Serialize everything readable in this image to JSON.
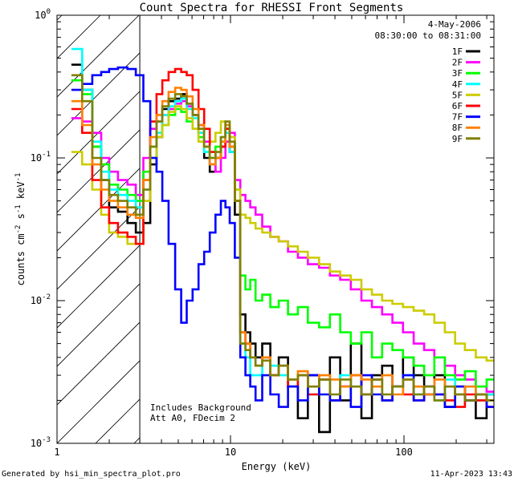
{
  "chart_data": {
    "type": "line",
    "title": "Count Spectra for RHESSI Front Segments",
    "xlabel": "Energy (keV)",
    "ylabel_main": "counts cm",
    "ylabel_sup1": "-2",
    "ylabel_mid": " s",
    "ylabel_sup2": "-1",
    "ylabel_end": " keV",
    "ylabel_sup3": "-1",
    "x_scale": "log",
    "y_scale": "log",
    "xlim": [
      1.0,
      330.0
    ],
    "ylim": [
      0.001,
      1.0
    ],
    "x_ticks": [
      {
        "value": 1,
        "label": "1"
      },
      {
        "value": 10,
        "label": "10"
      },
      {
        "value": 100,
        "label": "100"
      }
    ],
    "y_ticks": [
      {
        "value": 1.0,
        "base": "10",
        "exp": "0"
      },
      {
        "value": 0.1,
        "base": "10",
        "exp": "-1"
      },
      {
        "value": 0.01,
        "base": "10",
        "exp": "-2"
      },
      {
        "value": 0.001,
        "base": "10",
        "exp": "-3"
      }
    ],
    "hatched_region_max_kev": 3.0,
    "date": "4-May-2006",
    "time_range": "08:30:00 to 08:31:00",
    "annotation_lines": [
      "Includes Background",
      "Att A0, FDecim 2"
    ],
    "footer_left": "Generated by hsi_min_spectra_plot.pro",
    "footer_right": "11-Apr-2023 13:43",
    "series": [
      {
        "name": "1F",
        "color": "#000000",
        "x": [
          1.3,
          1.5,
          1.7,
          1.9,
          2.1,
          2.4,
          2.7,
          3.0,
          3.3,
          3.6,
          3.9,
          4.2,
          4.6,
          5.0,
          5.4,
          5.8,
          6.3,
          6.8,
          7.3,
          7.9,
          8.5,
          9.1,
          9.6,
          10.2,
          11.0,
          11.8,
          12.6,
          13.4,
          14.5,
          16,
          18,
          20,
          23,
          26,
          30,
          35,
          40,
          46,
          53,
          61,
          70,
          80,
          92,
          106,
          122,
          140,
          160,
          185,
          210,
          240,
          280,
          320
        ],
        "y": [
          0.45,
          0.3,
          0.12,
          0.07,
          0.045,
          0.042,
          0.035,
          0.03,
          0.035,
          0.09,
          0.14,
          0.22,
          0.25,
          0.26,
          0.28,
          0.24,
          0.2,
          0.15,
          0.1,
          0.08,
          0.1,
          0.12,
          0.16,
          0.11,
          0.04,
          0.008,
          0.006,
          0.005,
          0.004,
          0.005,
          0.003,
          0.004,
          0.0025,
          0.0015,
          0.003,
          0.0012,
          0.004,
          0.002,
          0.005,
          0.0015,
          0.003,
          0.0035,
          0.0025,
          0.004,
          0.003,
          0.0022,
          0.003,
          0.0018,
          0.0025,
          0.002,
          0.0015,
          0.0022
        ]
      },
      {
        "name": "2F",
        "color": "#ff00ff",
        "x": [
          1.3,
          1.5,
          1.7,
          1.9,
          2.1,
          2.4,
          2.7,
          3.0,
          3.3,
          3.6,
          3.9,
          4.2,
          4.6,
          5.0,
          5.4,
          5.8,
          6.3,
          6.8,
          7.3,
          7.9,
          8.5,
          9.1,
          9.6,
          10.2,
          11.0,
          11.8,
          12.6,
          13.4,
          14.5,
          16,
          18,
          20,
          23,
          26,
          30,
          35,
          40,
          46,
          53,
          61,
          70,
          80,
          92,
          106,
          122,
          140,
          160,
          185,
          210,
          240,
          280,
          320
        ],
        "y": [
          0.19,
          0.18,
          0.15,
          0.1,
          0.08,
          0.07,
          0.065,
          0.055,
          0.1,
          0.16,
          0.18,
          0.2,
          0.22,
          0.24,
          0.25,
          0.23,
          0.2,
          0.17,
          0.13,
          0.09,
          0.08,
          0.1,
          0.13,
          0.15,
          0.07,
          0.055,
          0.05,
          0.045,
          0.04,
          0.033,
          0.028,
          0.026,
          0.022,
          0.02,
          0.018,
          0.017,
          0.015,
          0.014,
          0.012,
          0.01,
          0.009,
          0.008,
          0.007,
          0.006,
          0.005,
          0.0045,
          0.004,
          0.0035,
          0.003,
          0.0028,
          0.0025,
          0.0023
        ]
      },
      {
        "name": "3F",
        "color": "#00ff00",
        "x": [
          1.3,
          1.5,
          1.7,
          1.9,
          2.1,
          2.4,
          2.7,
          3.0,
          3.3,
          3.6,
          3.9,
          4.2,
          4.6,
          5.0,
          5.4,
          5.8,
          6.3,
          6.8,
          7.3,
          7.9,
          8.5,
          9.1,
          9.6,
          10.2,
          11.0,
          11.8,
          12.6,
          13.4,
          14.5,
          16,
          18,
          20,
          23,
          26,
          30,
          35,
          40,
          46,
          53,
          61,
          70,
          80,
          92,
          106,
          122,
          140,
          160,
          185,
          210,
          240,
          280,
          320
        ],
        "y": [
          0.35,
          0.28,
          0.12,
          0.09,
          0.065,
          0.06,
          0.055,
          0.05,
          0.08,
          0.12,
          0.15,
          0.17,
          0.2,
          0.22,
          0.21,
          0.18,
          0.16,
          0.14,
          0.11,
          0.1,
          0.12,
          0.14,
          0.16,
          0.12,
          0.06,
          0.015,
          0.012,
          0.014,
          0.01,
          0.011,
          0.009,
          0.01,
          0.008,
          0.009,
          0.007,
          0.0065,
          0.008,
          0.006,
          0.005,
          0.006,
          0.004,
          0.005,
          0.0045,
          0.004,
          0.0035,
          0.003,
          0.004,
          0.003,
          0.0028,
          0.0032,
          0.0025,
          0.0028
        ]
      },
      {
        "name": "4F",
        "color": "#00ffff",
        "x": [
          1.3,
          1.5,
          1.7,
          1.9,
          2.1,
          2.4,
          2.7,
          3.0,
          3.3,
          3.6,
          3.9,
          4.2,
          4.6,
          5.0,
          5.4,
          5.8,
          6.3,
          6.8,
          7.3,
          7.9,
          8.5,
          9.1,
          9.6,
          10.2,
          11.0,
          11.8,
          12.6,
          13.4,
          14.5,
          16,
          18,
          20,
          23,
          26,
          30,
          35,
          40,
          46,
          53,
          61,
          70,
          80,
          92,
          106,
          122,
          140,
          160,
          185,
          210,
          240,
          280,
          320
        ],
        "y": [
          0.58,
          0.3,
          0.13,
          0.08,
          0.06,
          0.055,
          0.05,
          0.045,
          0.06,
          0.1,
          0.15,
          0.2,
          0.23,
          0.25,
          0.26,
          0.22,
          0.19,
          0.15,
          0.11,
          0.09,
          0.1,
          0.13,
          0.15,
          0.11,
          0.05,
          0.005,
          0.004,
          0.003,
          0.003,
          0.004,
          0.0035,
          0.003,
          0.0025,
          0.003,
          0.0022,
          0.0028,
          0.002,
          0.003,
          0.0025,
          0.0022,
          0.0028,
          0.002,
          0.0025,
          0.003,
          0.0022,
          0.0025,
          0.002,
          0.0028,
          0.0022,
          0.0025,
          0.002,
          0.0022
        ]
      },
      {
        "name": "5F",
        "color": "#cccc00",
        "x": [
          1.3,
          1.5,
          1.7,
          1.9,
          2.1,
          2.4,
          2.7,
          3.0,
          3.3,
          3.6,
          3.9,
          4.2,
          4.6,
          5.0,
          5.4,
          5.8,
          6.3,
          6.8,
          7.3,
          7.9,
          8.5,
          9.1,
          9.6,
          10.2,
          11.0,
          11.8,
          12.6,
          13.4,
          14.5,
          16,
          18,
          20,
          23,
          26,
          30,
          35,
          40,
          46,
          53,
          61,
          70,
          80,
          92,
          106,
          122,
          140,
          160,
          185,
          210,
          240,
          280,
          320
        ],
        "y": [
          0.11,
          0.09,
          0.06,
          0.04,
          0.03,
          0.028,
          0.025,
          0.025,
          0.05,
          0.1,
          0.14,
          0.17,
          0.21,
          0.23,
          0.22,
          0.19,
          0.16,
          0.13,
          0.12,
          0.13,
          0.15,
          0.18,
          0.16,
          0.14,
          0.06,
          0.04,
          0.038,
          0.035,
          0.032,
          0.03,
          0.028,
          0.026,
          0.024,
          0.022,
          0.02,
          0.018,
          0.016,
          0.015,
          0.014,
          0.012,
          0.011,
          0.01,
          0.0095,
          0.009,
          0.0085,
          0.008,
          0.007,
          0.006,
          0.005,
          0.0045,
          0.004,
          0.0038
        ]
      },
      {
        "name": "6F",
        "color": "#ff0000",
        "x": [
          1.3,
          1.5,
          1.7,
          1.9,
          2.1,
          2.4,
          2.7,
          3.0,
          3.3,
          3.6,
          3.9,
          4.2,
          4.6,
          5.0,
          5.4,
          5.8,
          6.3,
          6.8,
          7.3,
          7.9,
          8.5,
          9.1,
          9.6,
          10.2,
          11.0,
          11.8,
          12.6,
          13.4,
          14.5,
          16,
          18,
          20,
          23,
          26,
          30,
          35,
          40,
          46,
          53,
          61,
          70,
          80,
          92,
          106,
          122,
          140,
          160,
          185,
          210,
          240,
          280,
          320
        ],
        "y": [
          0.22,
          0.15,
          0.07,
          0.045,
          0.035,
          0.03,
          0.028,
          0.025,
          0.07,
          0.18,
          0.28,
          0.35,
          0.4,
          0.42,
          0.4,
          0.38,
          0.3,
          0.22,
          0.16,
          0.11,
          0.1,
          0.12,
          0.16,
          0.12,
          0.05,
          0.006,
          0.005,
          0.004,
          0.0035,
          0.004,
          0.003,
          0.0035,
          0.0025,
          0.003,
          0.0022,
          0.0028,
          0.002,
          0.0025,
          0.003,
          0.0022,
          0.0028,
          0.002,
          0.0025,
          0.0022,
          0.002,
          0.0025,
          0.0022,
          0.002,
          0.0018,
          0.0022,
          0.002,
          0.0018
        ]
      },
      {
        "name": "7F",
        "color": "#0000ff",
        "x": [
          1.3,
          1.5,
          1.7,
          1.9,
          2.1,
          2.4,
          2.7,
          3.0,
          3.3,
          3.6,
          3.9,
          4.2,
          4.6,
          5.0,
          5.4,
          5.8,
          6.3,
          6.8,
          7.3,
          7.9,
          8.5,
          9.1,
          9.6,
          10.2,
          11.0,
          11.8,
          12.6,
          13.4,
          14.5,
          16,
          18,
          20,
          23,
          26,
          30,
          35,
          40,
          46,
          53,
          61,
          70,
          80,
          92,
          106,
          122,
          140,
          160,
          185,
          210,
          240,
          280,
          320
        ],
        "y": [
          0.3,
          0.33,
          0.38,
          0.4,
          0.42,
          0.43,
          0.42,
          0.38,
          0.25,
          0.1,
          0.08,
          0.05,
          0.025,
          0.012,
          0.007,
          0.01,
          0.012,
          0.018,
          0.022,
          0.03,
          0.04,
          0.05,
          0.045,
          0.035,
          0.02,
          0.004,
          0.003,
          0.0025,
          0.002,
          0.003,
          0.0022,
          0.0018,
          0.0025,
          0.002,
          0.003,
          0.0022,
          0.002,
          0.0025,
          0.0018,
          0.003,
          0.0022,
          0.002,
          0.0025,
          0.003,
          0.002,
          0.0025,
          0.0022,
          0.0018,
          0.0025,
          0.002,
          0.0022,
          0.0018
        ]
      },
      {
        "name": "8F",
        "color": "#ff8000",
        "x": [
          1.3,
          1.5,
          1.7,
          1.9,
          2.1,
          2.4,
          2.7,
          3.0,
          3.3,
          3.6,
          3.9,
          4.2,
          4.6,
          5.0,
          5.4,
          5.8,
          6.3,
          6.8,
          7.3,
          7.9,
          8.5,
          9.1,
          9.6,
          10.2,
          11.0,
          11.8,
          12.6,
          13.4,
          14.5,
          16,
          18,
          20,
          23,
          26,
          30,
          35,
          40,
          46,
          53,
          61,
          70,
          80,
          92,
          106,
          122,
          140,
          160,
          185,
          210,
          240,
          280,
          320
        ],
        "y": [
          0.25,
          0.17,
          0.09,
          0.06,
          0.05,
          0.045,
          0.04,
          0.038,
          0.07,
          0.14,
          0.2,
          0.25,
          0.29,
          0.31,
          0.3,
          0.27,
          0.22,
          0.17,
          0.12,
          0.09,
          0.1,
          0.13,
          0.17,
          0.12,
          0.05,
          0.006,
          0.005,
          0.004,
          0.0035,
          0.004,
          0.003,
          0.0035,
          0.0028,
          0.0032,
          0.0025,
          0.003,
          0.0028,
          0.0025,
          0.003,
          0.0028,
          0.0025,
          0.003,
          0.0022,
          0.0028,
          0.0025,
          0.0022,
          0.0028,
          0.0025,
          0.0022,
          0.0025,
          0.0022,
          0.002
        ]
      },
      {
        "name": "9F",
        "color": "#808000",
        "x": [
          1.3,
          1.5,
          1.7,
          1.9,
          2.1,
          2.4,
          2.7,
          3.0,
          3.3,
          3.6,
          3.9,
          4.2,
          4.6,
          5.0,
          5.4,
          5.8,
          6.3,
          6.8,
          7.3,
          7.9,
          8.5,
          9.1,
          9.6,
          10.2,
          11.0,
          11.8,
          12.6,
          13.4,
          14.5,
          16,
          18,
          20,
          23,
          26,
          30,
          35,
          40,
          46,
          53,
          61,
          70,
          80,
          92,
          106,
          122,
          140,
          160,
          185,
          210,
          240,
          280,
          320
        ],
        "y": [
          0.38,
          0.25,
          0.1,
          0.07,
          0.055,
          0.05,
          0.045,
          0.04,
          0.06,
          0.12,
          0.18,
          0.23,
          0.26,
          0.28,
          0.27,
          0.24,
          0.2,
          0.16,
          0.12,
          0.1,
          0.11,
          0.14,
          0.18,
          0.13,
          0.05,
          0.005,
          0.0045,
          0.004,
          0.0035,
          0.0038,
          0.003,
          0.0035,
          0.0028,
          0.003,
          0.0025,
          0.0028,
          0.0022,
          0.0028,
          0.0025,
          0.0022,
          0.0028,
          0.0022,
          0.0025,
          0.0028,
          0.0022,
          0.0025,
          0.002,
          0.0025,
          0.0022,
          0.002,
          0.0022,
          0.002
        ]
      }
    ]
  }
}
